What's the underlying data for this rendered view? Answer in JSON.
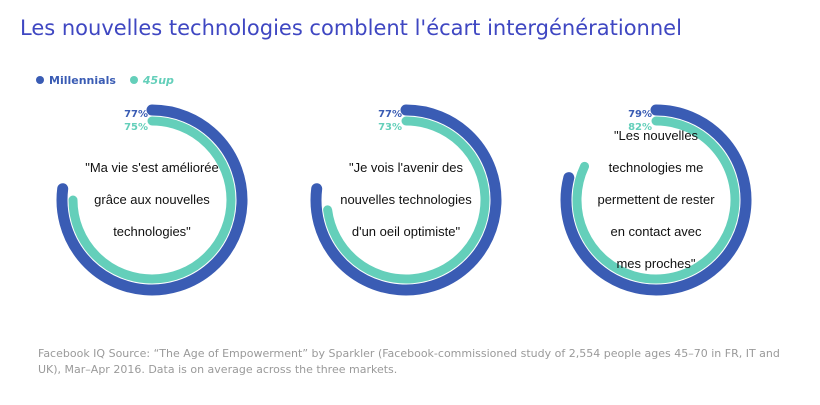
{
  "title": "Les nouvelles technologies comblent l'écart intergénérationnel",
  "colors": {
    "millennials": "#3a5cb4",
    "up45": "#64cfba"
  },
  "chart_data": {
    "type": "donut",
    "series": [
      {
        "name": "Millennials"
      },
      {
        "name": "45up"
      }
    ],
    "items": [
      {
        "label": "\"Ma vie s'est améliorée grâce aux nouvelles technologies\"",
        "lines": [
          "\"Ma vie s'est améliorée",
          "grâce aux nouvelles",
          "technologies\""
        ],
        "millennials": 77,
        "up45": 75,
        "millennials_label": "77%",
        "up45_label": "75%"
      },
      {
        "label": "\"Je vois l'avenir des nouvelles technologies d'un oeil optimiste\"",
        "lines": [
          "\"Je vois l'avenir des",
          "nouvelles technologies",
          "d'un oeil optimiste\""
        ],
        "millennials": 77,
        "up45": 73,
        "millennials_label": "77%",
        "up45_label": "73%"
      },
      {
        "label": "\"Les nouvelles technologies me permettent de rester en contact avec mes proches\"",
        "lines": [
          "\"Les nouvelles",
          "technologies me",
          "permettent de rester",
          "en contact avec",
          "mes proches\""
        ],
        "millennials": 79,
        "up45": 82,
        "millennials_label": "79%",
        "up45_label": "82%"
      }
    ]
  },
  "source": "Facebook IQ Source: “The Age of Empowerment” by Sparkler (Facebook-commissioned study of 2,554 people ages 45–70 in FR, IT and UK), Mar–Apr 2016. Data is on average across the three markets."
}
